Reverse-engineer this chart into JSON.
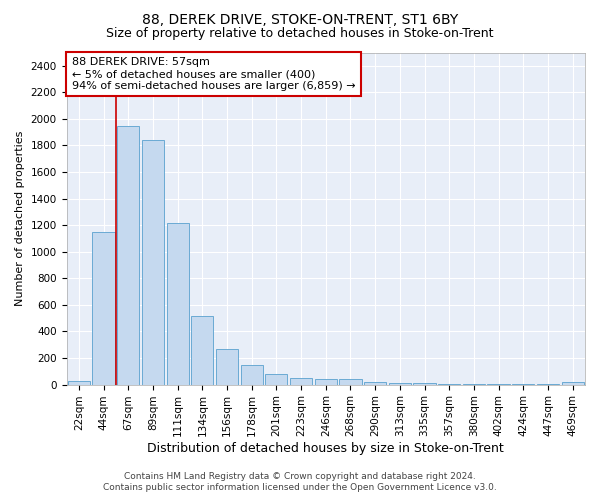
{
  "title1": "88, DEREK DRIVE, STOKE-ON-TRENT, ST1 6BY",
  "title2": "Size of property relative to detached houses in Stoke-on-Trent",
  "xlabel": "Distribution of detached houses by size in Stoke-on-Trent",
  "ylabel": "Number of detached properties",
  "annotation_title": "88 DEREK DRIVE: 57sqm",
  "annotation_line1": "← 5% of detached houses are smaller (400)",
  "annotation_line2": "94% of semi-detached houses are larger (6,859) →",
  "footer1": "Contains HM Land Registry data © Crown copyright and database right 2024.",
  "footer2": "Contains public sector information licensed under the Open Government Licence v3.0.",
  "categories": [
    "22sqm",
    "44sqm",
    "67sqm",
    "89sqm",
    "111sqm",
    "134sqm",
    "156sqm",
    "178sqm",
    "201sqm",
    "223sqm",
    "246sqm",
    "268sqm",
    "290sqm",
    "313sqm",
    "335sqm",
    "357sqm",
    "380sqm",
    "402sqm",
    "424sqm",
    "447sqm",
    "469sqm"
  ],
  "values": [
    30,
    1150,
    1950,
    1840,
    1220,
    520,
    265,
    150,
    80,
    50,
    45,
    40,
    20,
    15,
    10,
    5,
    3,
    2,
    1,
    1,
    18
  ],
  "bar_color": "#c5d9ef",
  "bar_edge_color": "#6aaad4",
  "vline_x_pos": 2.0,
  "vline_color": "#cc0000",
  "annotation_box_edge_color": "#cc0000",
  "ylim": [
    0,
    2500
  ],
  "yticks": [
    0,
    200,
    400,
    600,
    800,
    1000,
    1200,
    1400,
    1600,
    1800,
    2000,
    2200,
    2400
  ],
  "background_color": "#e8eef8",
  "grid_color": "#ffffff",
  "title1_fontsize": 10,
  "title2_fontsize": 9,
  "xlabel_fontsize": 9,
  "ylabel_fontsize": 8,
  "footer_fontsize": 6.5,
  "tick_fontsize": 7.5
}
